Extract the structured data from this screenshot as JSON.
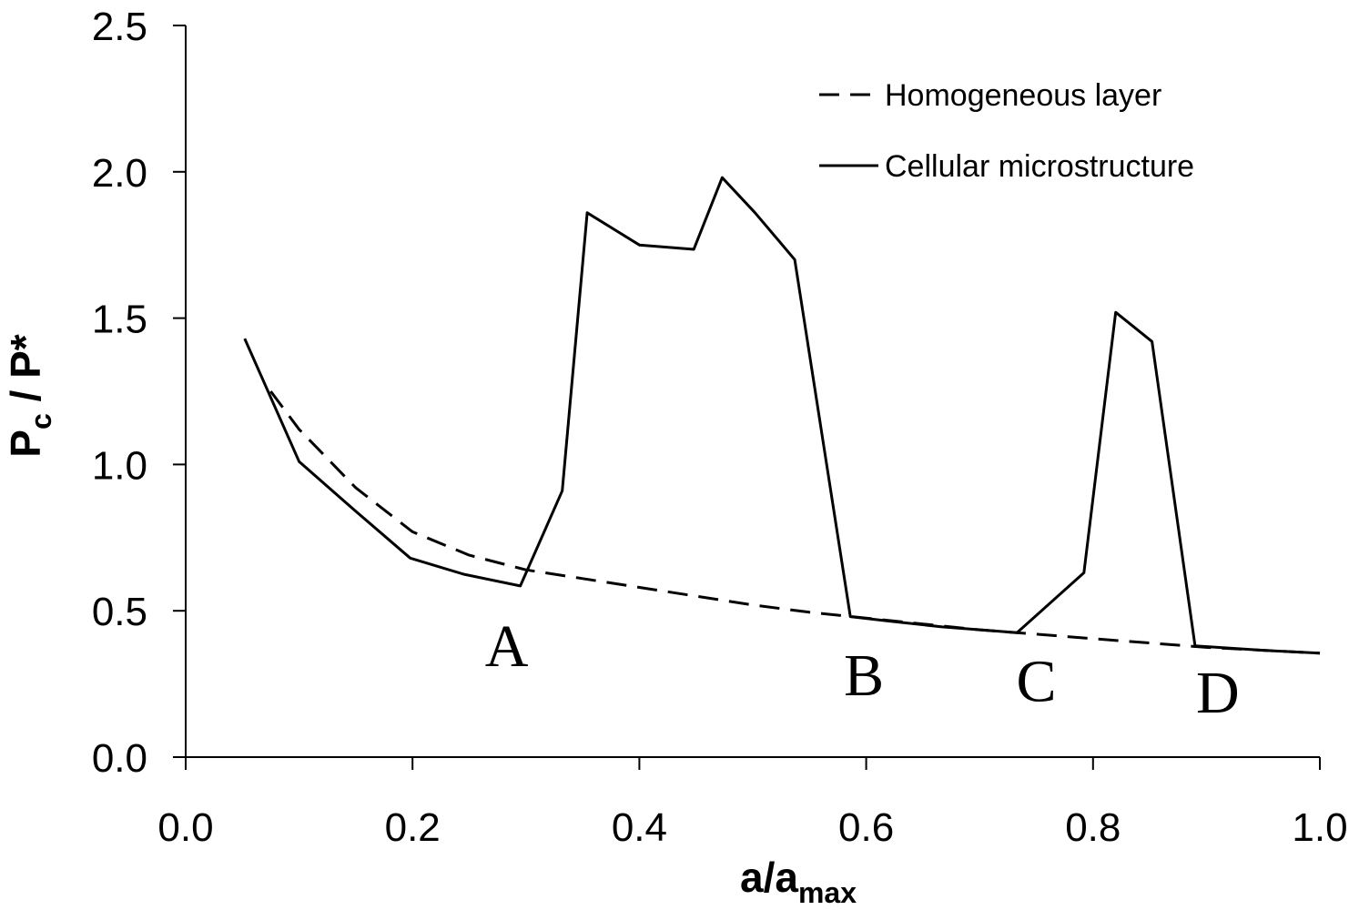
{
  "chart_data": {
    "type": "line",
    "xlabel": {
      "main": "a/a",
      "sub": "max"
    },
    "ylabel": {
      "main": "P",
      "sub": "c",
      "rest": " / P*"
    },
    "xlim": [
      0.0,
      1.0
    ],
    "ylim": [
      0.0,
      2.5
    ],
    "x_ticks": [
      "0.0",
      "0.2",
      "0.4",
      "0.6",
      "0.8",
      "1.0"
    ],
    "y_ticks": [
      "0.0",
      "0.5",
      "1.0",
      "1.5",
      "2.0",
      "2.5"
    ],
    "legend_position": "top-right",
    "series": [
      {
        "name": "Homogeneous layer",
        "style": "dashed",
        "color": "#000000",
        "x": [
          0.075,
          0.1,
          0.15,
          0.2,
          0.25,
          0.3,
          0.35,
          0.4,
          0.45,
          0.5,
          0.55,
          0.6,
          0.65,
          0.7,
          0.75,
          0.8,
          0.85,
          0.9,
          0.95,
          1.0
        ],
        "y": [
          1.25,
          1.12,
          0.92,
          0.77,
          0.69,
          0.64,
          0.61,
          0.58,
          0.55,
          0.52,
          0.495,
          0.475,
          0.455,
          0.435,
          0.42,
          0.405,
          0.39,
          0.375,
          0.365,
          0.355
        ]
      },
      {
        "name": "Cellular microstructure",
        "style": "solid",
        "color": "#000000",
        "x": [
          0.052,
          0.1,
          0.15,
          0.198,
          0.245,
          0.295,
          0.332,
          0.354,
          0.4,
          0.448,
          0.473,
          0.502,
          0.537,
          0.586,
          0.62,
          0.667,
          0.733,
          0.792,
          0.82,
          0.852,
          0.89,
          0.95,
          1.0
        ],
        "y": [
          1.43,
          1.01,
          0.84,
          0.68,
          0.625,
          0.585,
          0.91,
          1.86,
          1.75,
          1.735,
          1.98,
          1.86,
          1.7,
          0.48,
          0.465,
          0.445,
          0.425,
          0.63,
          1.52,
          1.42,
          0.38,
          0.365,
          0.355
        ]
      }
    ],
    "annotations": [
      {
        "text": "A",
        "x": 0.283,
        "y": 0.38
      },
      {
        "text": "B",
        "x": 0.598,
        "y": 0.28
      },
      {
        "text": "C",
        "x": 0.75,
        "y": 0.26
      },
      {
        "text": "D",
        "x": 0.91,
        "y": 0.22
      }
    ]
  }
}
